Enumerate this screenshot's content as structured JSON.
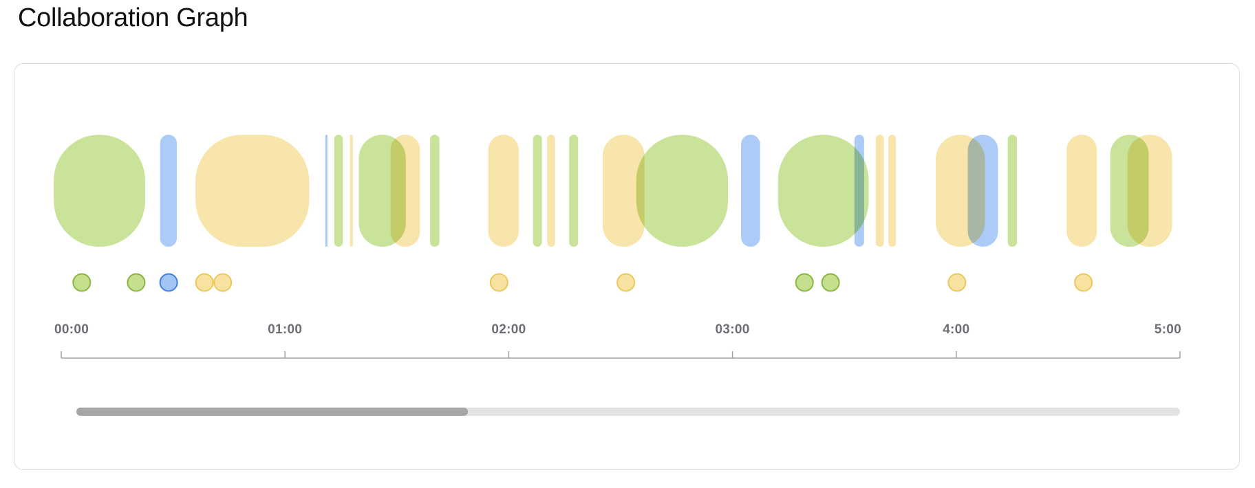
{
  "page": {
    "title": "Collaboration Graph"
  },
  "colors": {
    "green_fill": "#c4e08f",
    "blue_fill": "#a3c5f6",
    "yellow_fill": "#f7e2a2",
    "green_stroke": "#8ab63e",
    "blue_stroke": "#3f7fe0",
    "yellow_stroke": "#ebc85a",
    "axis": "#a0a0a0",
    "scrollbar_track": "#e3e3e3",
    "scrollbar_thumb": "#a6a6a6"
  },
  "timeline": {
    "time_unit": "minutes",
    "range": [
      0,
      300
    ],
    "ticks": [
      {
        "label": "00:00",
        "value": 0
      },
      {
        "label": "01:00",
        "value": 60
      },
      {
        "label": "02:00",
        "value": 120
      },
      {
        "label": "03:00",
        "value": 180
      },
      {
        "label": "4:00",
        "value": 240
      },
      {
        "label": "5:00",
        "value": 300
      }
    ],
    "sessions": [
      {
        "color": "green",
        "start": -2,
        "end": 22.5
      },
      {
        "color": "blue",
        "start": 26.5,
        "end": 31
      },
      {
        "color": "yellow",
        "start": 36,
        "end": 66.5
      },
      {
        "color": "blue",
        "start": 70.8,
        "end": 71.4
      },
      {
        "color": "green",
        "start": 73.2,
        "end": 75.5
      },
      {
        "color": "yellow",
        "start": 77.4,
        "end": 78.2
      },
      {
        "color": "green",
        "start": 79.8,
        "end": 92.4
      },
      {
        "color": "yellow",
        "start": 88.3,
        "end": 96.2
      },
      {
        "color": "green",
        "start": 98.9,
        "end": 101.4
      },
      {
        "color": "yellow",
        "start": 114.5,
        "end": 122.7
      },
      {
        "color": "green",
        "start": 126.5,
        "end": 128.9
      },
      {
        "color": "yellow",
        "start": 130.3,
        "end": 132.4
      },
      {
        "color": "green",
        "start": 136.2,
        "end": 138.6
      },
      {
        "color": "yellow",
        "start": 145.2,
        "end": 156.4
      },
      {
        "color": "green",
        "start": 154.2,
        "end": 178.8
      },
      {
        "color": "blue",
        "start": 182.3,
        "end": 187.4
      },
      {
        "color": "green",
        "start": 192.2,
        "end": 216.5
      },
      {
        "color": "blue",
        "start": 212.7,
        "end": 215.3
      },
      {
        "color": "yellow",
        "start": 218.4,
        "end": 220.6
      },
      {
        "color": "yellow",
        "start": 221.8,
        "end": 223.8
      },
      {
        "color": "yellow",
        "start": 234.5,
        "end": 247.7
      },
      {
        "color": "blue",
        "start": 243.1,
        "end": 251.2
      },
      {
        "color": "green",
        "start": 253.8,
        "end": 256.3
      },
      {
        "color": "yellow",
        "start": 269.6,
        "end": 277.7
      },
      {
        "color": "green",
        "start": 281.3,
        "end": 291.6
      },
      {
        "color": "yellow",
        "start": 285.9,
        "end": 297.9
      }
    ],
    "events": [
      {
        "color": "green",
        "time": 5.5
      },
      {
        "color": "green",
        "time": 20.1
      },
      {
        "color": "blue",
        "time": 28.8
      },
      {
        "color": "yellow",
        "time": 38.4
      },
      {
        "color": "yellow",
        "time": 43.3
      },
      {
        "color": "yellow",
        "time": 117.4
      },
      {
        "color": "yellow",
        "time": 151.4
      },
      {
        "color": "green",
        "time": 199.3
      },
      {
        "color": "green",
        "time": 206.3
      },
      {
        "color": "yellow",
        "time": 240.2
      },
      {
        "color": "yellow",
        "time": 274.1
      }
    ]
  },
  "scrollbar": {
    "visible_fraction": 0.355,
    "position_fraction": 0
  }
}
